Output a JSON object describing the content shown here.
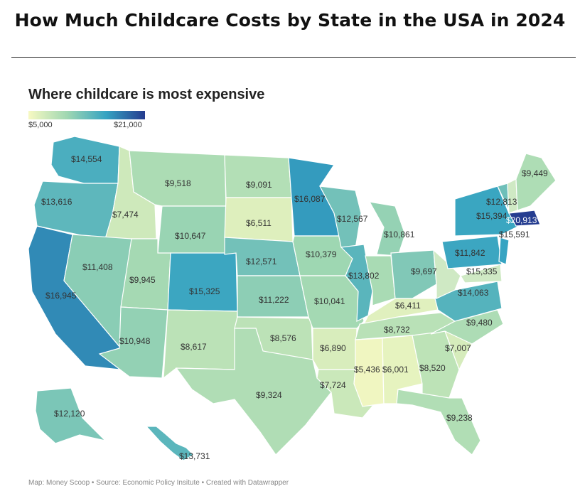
{
  "page_title": "How Much Childcare Costs by State in the USA in 2024",
  "map_title": "Where childcare is most expensive",
  "legend": {
    "min_label": "$5,000",
    "max_label": "$21,000",
    "min_value": 5000,
    "max_value": 21000
  },
  "footer": "Map: Money Scoop • Source: Economic Policy Insitute • Created with Datawrapper",
  "colors": {
    "low": "#f7f9c2",
    "mid": "#9fd7b2",
    "high": "#35a3c2",
    "max": "#253b8f"
  },
  "states": [
    {
      "id": "WA",
      "label": "$14,554",
      "value": 14554
    },
    {
      "id": "OR",
      "label": "$13,616",
      "value": 13616
    },
    {
      "id": "CA",
      "label": "$16,945",
      "value": 16945
    },
    {
      "id": "ID",
      "label": "$7,474",
      "value": 7474
    },
    {
      "id": "NV",
      "label": "$11,408",
      "value": 11408
    },
    {
      "id": "MT",
      "label": "$9,518",
      "value": 9518
    },
    {
      "id": "WY",
      "label": "$10,647",
      "value": 10647
    },
    {
      "id": "UT",
      "label": "$9,945",
      "value": 9945
    },
    {
      "id": "AZ",
      "label": "$10,948",
      "value": 10948
    },
    {
      "id": "CO",
      "label": "$15,325",
      "value": 15325
    },
    {
      "id": "NM",
      "label": "$8,617",
      "value": 8617
    },
    {
      "id": "ND",
      "label": "$9,091",
      "value": 9091
    },
    {
      "id": "SD",
      "label": "$6,511",
      "value": 6511
    },
    {
      "id": "NE",
      "label": "$12,571",
      "value": 12571
    },
    {
      "id": "KS",
      "label": "$11,222",
      "value": 11222
    },
    {
      "id": "OK",
      "label": "$8,576",
      "value": 8576
    },
    {
      "id": "TX",
      "label": "$9,324",
      "value": 9324
    },
    {
      "id": "MN",
      "label": "$16,087",
      "value": 16087
    },
    {
      "id": "IA",
      "label": "$10,379",
      "value": 10379
    },
    {
      "id": "MO",
      "label": "$10,041",
      "value": 10041
    },
    {
      "id": "AR",
      "label": "$6,890",
      "value": 6890
    },
    {
      "id": "LA",
      "label": "$7,724",
      "value": 7724
    },
    {
      "id": "WI",
      "label": "$12,567",
      "value": 12567
    },
    {
      "id": "IL",
      "label": "$13,802",
      "value": 13802
    },
    {
      "id": "MI",
      "label": "$10,861",
      "value": 10861
    },
    {
      "id": "IN",
      "label": "$9,697",
      "value": 9697
    },
    {
      "id": "OH",
      "label": "$11,842",
      "value": 11842
    },
    {
      "id": "KY",
      "label": "$6,411",
      "value": 6411
    },
    {
      "id": "TN",
      "label": "$8,732",
      "value": 8732
    },
    {
      "id": "MS",
      "label": "$5,436",
      "value": 5436
    },
    {
      "id": "AL",
      "label": "$6,001",
      "value": 6001
    },
    {
      "id": "GA",
      "label": "$8,520",
      "value": 8520
    },
    {
      "id": "FL",
      "label": "$9,238",
      "value": 9238
    },
    {
      "id": "SC",
      "label": "$7,007",
      "value": 7007
    },
    {
      "id": "NC",
      "label": "$9,480",
      "value": 9480
    },
    {
      "id": "VA",
      "label": "$14,063",
      "value": 14063
    },
    {
      "id": "WV",
      "label": "",
      "value": null
    },
    {
      "id": "PA",
      "label": "$15,335",
      "value": 15335
    },
    {
      "id": "NY",
      "label": "$15,394",
      "value": 15394
    },
    {
      "id": "VT",
      "label": "$12,813",
      "value": 12813
    },
    {
      "id": "NH",
      "label": "",
      "value": null
    },
    {
      "id": "ME",
      "label": "$9,449",
      "value": 9449
    },
    {
      "id": "MA",
      "label": "$20,913",
      "value": 20913
    },
    {
      "id": "NJ",
      "label": "$15,591",
      "value": 15591
    },
    {
      "id": "MD",
      "label": "",
      "value": null
    },
    {
      "id": "AK",
      "label": "$12,120",
      "value": 12120
    },
    {
      "id": "HI",
      "label": "$13,731",
      "value": 13731
    }
  ]
}
